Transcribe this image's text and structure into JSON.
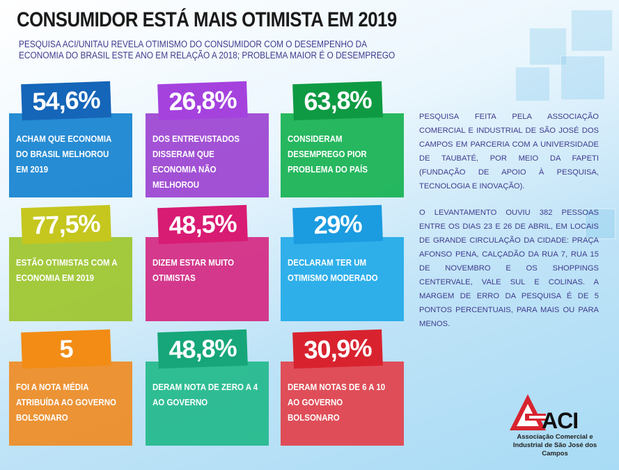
{
  "header": {
    "title": "CONSUMIDOR ESTÁ MAIS OTIMISTA EM 2019",
    "subtitle": "PESQUISA ACI/UNITAU REVELA OTIMISMO DO CONSUMIDOR COM O DESEMPENHO DA ECONOMIA DO BRASIL ESTE ANO EM RELAÇÃO A 2018; PROBLEMA MAIOR É O DESEMPREGO"
  },
  "cards": [
    {
      "value": "54,6%",
      "text": "ACHAM QUE ECONOMIA DO BRASIL MELHOROU EM 2019",
      "color": "#0f80cf",
      "badge": "#1565b8"
    },
    {
      "value": "26,8%",
      "text": "DOS ENTREVISTADOS DISSERAM QUE ECONOMIA NÃO MELHOROU",
      "color": "#9a3fd0",
      "badge": "#a542de"
    },
    {
      "value": "63,8%",
      "text": "CONSIDERAM DESEMPREGO PIOR PROBLEMA DO PAÍS",
      "color": "#12b04e",
      "badge": "#0e9a43"
    },
    {
      "value": "77,5%",
      "text": "ESTÃO OTIMISTAS COM A ECONOMIA EM 2019",
      "color": "#9cc428",
      "badge": "#c5c61e"
    },
    {
      "value": "48,5%",
      "text": "DIZEM ESTAR MUITO OTIMISTAS",
      "color": "#d4257f",
      "badge": "#d81b73"
    },
    {
      "value": "29%",
      "text": "DECLARAM TER UM OTIMISMO MODERADO",
      "color": "#1ea8e8",
      "badge": "#1b9be0"
    },
    {
      "value": "5",
      "text": "FOI A NOTA MÉDIA ATRIBUÍDA AO GOVERNO BOLSONARO",
      "color": "#f08a1f",
      "badge": "#f28c15"
    },
    {
      "value": "48,8%",
      "text": "DERAM NOTA DE ZERO A 4 AO GOVERNO",
      "color": "#1fb888",
      "badge": "#16a679"
    },
    {
      "value": "30,9%",
      "text": "DERAM NOTAS DE 6 A 10 AO GOVERNO BOLSONARO",
      "color": "#e33e47",
      "badge": "#d8232f"
    }
  ],
  "info": {
    "p1": "PESQUISA FEITA PELA ASSOCIAÇÃO COMERCIAL E INDUSTRIAL DE SÃO JOSÉ DOS CAMPOS EM PARCERIA COM A UNIVERSIDADE DE TAUBATÉ, POR MEIO DA FAPETI (FUNDAÇÃO DE APOIO À PESQUISA, TECNOLOGIA E INOVAÇÃO).",
    "p2": "O LEVANTAMENTO OUVIU 382 PESSOAS ENTRE OS DIAS 23 E 26 DE ABRIL, EM LOCAIS DE GRANDE CIRCULAÇÃO DA CIDADE: PRAÇA AFONSO PENA, CALÇADÃO DA RUA 7, RUA 15 DE NOVEMBRO E OS SHOPPINGS CENTERVALE, VALE SUL E COLINAS. A MARGEM DE ERRO DA PESQUISA É DE 5 PONTOS PERCENTUAIS, PARA MAIS OU PARA MENOS."
  },
  "logo": {
    "word": "ACI",
    "org": "Associação Comercial e Industrial de São José dos Campos",
    "icon": "aci-logo-icon",
    "brand_color": "#d8232f"
  }
}
